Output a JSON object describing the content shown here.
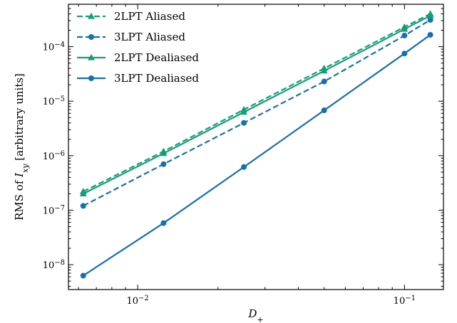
{
  "chart_data": {
    "type": "line",
    "xscale": "log",
    "yscale": "log",
    "xlim": [
      0.0055,
      0.14
    ],
    "ylim": [
      3.5e-09,
      0.0006
    ],
    "xlabel_main": "D",
    "xlabel_sub": "+",
    "ylabel_pre": "RMS of ",
    "ylabel_sym": "I",
    "ylabel_sub": "xy",
    "ylabel_post": " [arbitrary units]",
    "x_ticks": [
      {
        "value": 0.01,
        "base": "10",
        "exp": "−2"
      },
      {
        "value": 0.1,
        "base": "10",
        "exp": "−1"
      }
    ],
    "y_ticks": [
      {
        "value": 1e-08,
        "base": "10",
        "exp": "−8"
      },
      {
        "value": 1e-07,
        "base": "10",
        "exp": "−7"
      },
      {
        "value": 1e-06,
        "base": "10",
        "exp": "−6"
      },
      {
        "value": 1e-05,
        "base": "10",
        "exp": "−5"
      },
      {
        "value": 0.0001,
        "base": "10",
        "exp": "−4"
      }
    ],
    "legend_position": "top-left",
    "series": [
      {
        "name": "2LPT Aliased",
        "color": "#159e76",
        "dash": "dashed",
        "marker": "triangle",
        "x": [
          0.00625,
          0.0125,
          0.025,
          0.05,
          0.1,
          0.125
        ],
        "y": [
          2.2e-07,
          1.2e-06,
          7e-06,
          4e-05,
          0.00023,
          0.0004
        ]
      },
      {
        "name": "3LPT Aliased",
        "color": "#1570b0",
        "dash": "dashed",
        "marker": "circle",
        "x": [
          0.00625,
          0.0125,
          0.025,
          0.05,
          0.1,
          0.125
        ],
        "y": [
          1.2e-07,
          7e-07,
          4e-06,
          2.3e-05,
          0.00016,
          0.00031
        ]
      },
      {
        "name": "2LPT Dealiased",
        "color": "#159e76",
        "dash": "solid",
        "marker": "triangle",
        "x": [
          0.00625,
          0.0125,
          0.025,
          0.05,
          0.1,
          0.125
        ],
        "y": [
          2e-07,
          1.1e-06,
          6.3e-06,
          3.6e-05,
          0.00021,
          0.00037
        ]
      },
      {
        "name": "3LPT Dealiased",
        "color": "#1570b0",
        "dash": "solid",
        "marker": "circle",
        "x": [
          0.00625,
          0.0125,
          0.025,
          0.05,
          0.1,
          0.125
        ],
        "y": [
          6.3e-09,
          5.8e-08,
          6.2e-07,
          6.8e-06,
          7.5e-05,
          0.000165
        ]
      }
    ]
  }
}
